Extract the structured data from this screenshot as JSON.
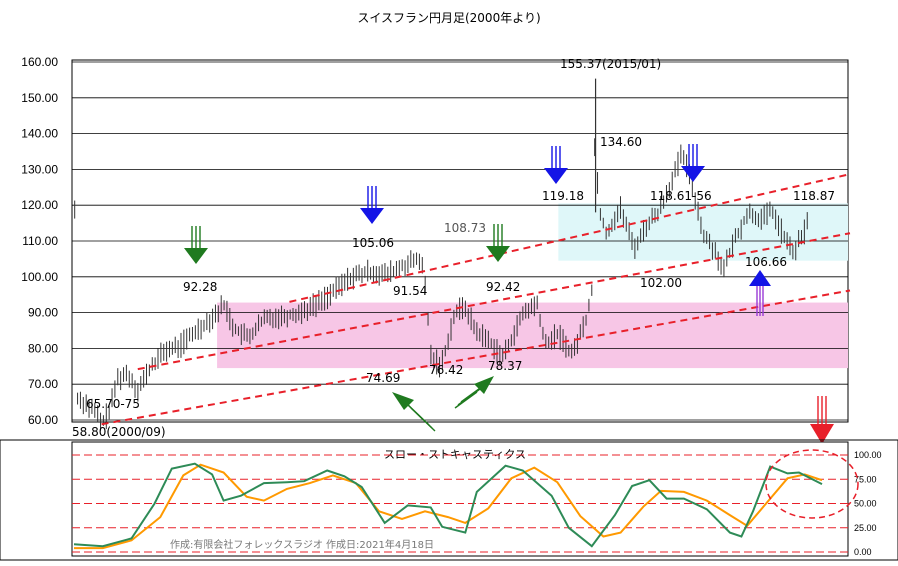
{
  "title": "スイスフラン円月足(2000年より)",
  "credit": "作成:有限会社フォレックスラジオ  作成日:2021年4月18日",
  "colors": {
    "cyan_zone": "#dff7f9",
    "pink_zone": "#f7c6e6",
    "trend_red": "#e8202a",
    "down_arrow_green": "#1f7a1f",
    "down_arrow_blue": "#1414e6",
    "up_arrow_blue": "#1414e6",
    "up_arrow_green": "#1f7a1f",
    "warning_red": "#e8202a",
    "stoch_k": "#2e8b57",
    "stoch_d": "#ff9900"
  },
  "chart_data": [
    {
      "type": "line",
      "name": "price",
      "ylim": [
        60,
        160
      ],
      "yticks": [
        "160.00",
        "150.00",
        "140.00",
        "130.00",
        "120.00",
        "110.00",
        "100.00",
        "90.00",
        "80.00",
        "70.00",
        "60.00"
      ],
      "zones": [
        {
          "name": "cyan",
          "from": 104.5,
          "to": 120.5
        },
        {
          "name": "pink",
          "from": 74.5,
          "to": 92.8
        }
      ],
      "trendlines": [
        {
          "x": [
            2000.75,
            2021.3
          ],
          "y": [
            58.8,
            94.5
          ]
        },
        {
          "x": [
            2001.8,
            2021.3
          ],
          "y": [
            74.2,
            110.5
          ]
        },
        {
          "x": [
            2006.2,
            2021.3
          ],
          "y": [
            93.0,
            127.0
          ]
        }
      ],
      "x_range": [
        1999.95,
        2021.3
      ],
      "price_anchors": [
        [
          2000.0,
          66.5
        ],
        [
          2000.3,
          64.5
        ],
        [
          2000.6,
          62.0
        ],
        [
          2000.75,
          58.8
        ],
        [
          2001.0,
          63.0
        ],
        [
          2001.2,
          71.5
        ],
        [
          2001.5,
          73.0
        ],
        [
          2001.8,
          68.5
        ],
        [
          2002.2,
          75.0
        ],
        [
          2002.6,
          79.5
        ],
        [
          2003.0,
          80.5
        ],
        [
          2003.5,
          85.0
        ],
        [
          2004.0,
          89.0
        ],
        [
          2004.3,
          92.28
        ],
        [
          2004.6,
          85.5
        ],
        [
          2005.0,
          83.0
        ],
        [
          2005.5,
          88.5
        ],
        [
          2006.0,
          89.0
        ],
        [
          2006.5,
          90.0
        ],
        [
          2007.0,
          92.5
        ],
        [
          2007.5,
          96.0
        ],
        [
          2008.0,
          100.0
        ],
        [
          2008.6,
          101.5
        ],
        [
          2009.0,
          100.5
        ],
        [
          2009.6,
          103.5
        ],
        [
          2010.0,
          105.06
        ],
        [
          2010.15,
          97.0
        ],
        [
          2010.3,
          78.0
        ],
        [
          2010.6,
          75.0
        ],
        [
          2011.0,
          90.0
        ],
        [
          2011.3,
          91.54
        ],
        [
          2011.6,
          85.0
        ],
        [
          2012.0,
          82.0
        ],
        [
          2012.4,
          77.5
        ],
        [
          2012.7,
          84.0
        ],
        [
          2013.0,
          90.0
        ],
        [
          2013.4,
          92.42
        ],
        [
          2013.6,
          81.0
        ],
        [
          2014.0,
          84.0
        ],
        [
          2014.4,
          78.37
        ],
        [
          2014.8,
          88.0
        ],
        [
          2015.0,
          98.0
        ],
        [
          2015.08,
          155.37
        ],
        [
          2015.15,
          120.0
        ],
        [
          2015.4,
          112.0
        ],
        [
          2015.8,
          119.18
        ],
        [
          2016.2,
          108.0
        ],
        [
          2016.6,
          115.0
        ],
        [
          2016.9,
          118.0
        ],
        [
          2017.3,
          127.0
        ],
        [
          2017.6,
          134.6
        ],
        [
          2017.9,
          125.0
        ],
        [
          2018.2,
          112.0
        ],
        [
          2018.5,
          108.0
        ],
        [
          2018.8,
          102.0
        ],
        [
          2019.1,
          110.0
        ],
        [
          2019.5,
          118.0
        ],
        [
          2019.9,
          116.0
        ],
        [
          2020.2,
          118.61
        ],
        [
          2020.5,
          112.0
        ],
        [
          2020.8,
          106.66
        ],
        [
          2021.0,
          110.0
        ],
        [
          2021.2,
          114.0
        ],
        [
          2021.3,
          118.87
        ]
      ],
      "annotations": [
        {
          "text": "155.37(2015/01)",
          "x": 2015.08,
          "y": 155.37
        },
        {
          "text": "134.60",
          "x": 2017.6,
          "y": 134.6
        },
        {
          "text": "119.18",
          "x": 2015.8,
          "y": 119.18
        },
        {
          "text": "118.61-56",
          "x": 2020.2,
          "y": 118.61
        },
        {
          "text": "118.87",
          "x": 2021.3,
          "y": 118.87
        },
        {
          "text": "108.73",
          "x": 2013.4,
          "y": 108.73
        },
        {
          "text": "105.06",
          "x": 2010.0,
          "y": 105.06
        },
        {
          "text": "106.66",
          "x": 2020.8,
          "y": 106.66
        },
        {
          "text": "102.00",
          "x": 2018.8,
          "y": 102.0
        },
        {
          "text": "92.28",
          "x": 2004.3,
          "y": 92.28
        },
        {
          "text": "91.54",
          "x": 2011.3,
          "y": 91.54
        },
        {
          "text": "92.42",
          "x": 2013.4,
          "y": 92.42
        },
        {
          "text": "74.69",
          "x": 2010.6,
          "y": 74.69
        },
        {
          "text": "76.42",
          "x": 2012.4,
          "y": 76.42
        },
        {
          "text": "78.37",
          "x": 2014.4,
          "y": 78.37
        },
        {
          "text": "65.70-75",
          "x": 2001.2,
          "y": 65.7
        },
        {
          "text": "58.80(2000/09)",
          "x": 2000.75,
          "y": 58.8
        }
      ]
    },
    {
      "type": "line",
      "name": "スロー・ストキャスティクス",
      "ylim": [
        0,
        100
      ],
      "yticks": [
        "100.00",
        "75.00",
        "50.00",
        "25.00",
        "0.00"
      ],
      "k_anchors": [
        [
          0.0,
          8
        ],
        [
          0.05,
          6
        ],
        [
          0.1,
          14
        ],
        [
          0.14,
          50
        ],
        [
          0.17,
          86
        ],
        [
          0.21,
          91
        ],
        [
          0.24,
          80
        ],
        [
          0.26,
          53
        ],
        [
          0.29,
          58
        ],
        [
          0.33,
          71
        ],
        [
          0.37,
          72
        ],
        [
          0.4,
          73
        ],
        [
          0.44,
          84
        ],
        [
          0.47,
          78
        ],
        [
          0.5,
          67
        ],
        [
          0.54,
          30
        ],
        [
          0.58,
          48
        ],
        [
          0.62,
          46
        ],
        [
          0.64,
          26
        ],
        [
          0.68,
          20
        ],
        [
          0.7,
          62
        ],
        [
          0.75,
          89
        ],
        [
          0.78,
          84
        ],
        [
          0.83,
          58
        ],
        [
          0.86,
          25
        ],
        [
          0.9,
          6
        ],
        [
          0.94,
          38
        ],
        [
          0.97,
          68
        ],
        [
          1.0,
          74
        ],
        [
          1.03,
          55
        ],
        [
          1.06,
          55
        ],
        [
          1.1,
          44
        ],
        [
          1.14,
          20
        ],
        [
          1.16,
          16
        ],
        [
          1.18,
          42
        ],
        [
          1.21,
          88
        ],
        [
          1.24,
          81
        ],
        [
          1.26,
          82
        ],
        [
          1.3,
          70
        ]
      ],
      "d_anchors": [
        [
          0.0,
          4
        ],
        [
          0.05,
          4
        ],
        [
          0.1,
          12
        ],
        [
          0.15,
          36
        ],
        [
          0.19,
          79
        ],
        [
          0.22,
          90
        ],
        [
          0.26,
          82
        ],
        [
          0.3,
          57
        ],
        [
          0.33,
          53
        ],
        [
          0.37,
          65
        ],
        [
          0.41,
          71
        ],
        [
          0.45,
          79
        ],
        [
          0.49,
          71
        ],
        [
          0.53,
          42
        ],
        [
          0.57,
          34
        ],
        [
          0.61,
          42
        ],
        [
          0.65,
          36
        ],
        [
          0.68,
          30
        ],
        [
          0.72,
          45
        ],
        [
          0.76,
          76
        ],
        [
          0.8,
          87
        ],
        [
          0.84,
          72
        ],
        [
          0.88,
          37
        ],
        [
          0.92,
          16
        ],
        [
          0.95,
          20
        ],
        [
          0.99,
          47
        ],
        [
          1.02,
          63
        ],
        [
          1.06,
          62
        ],
        [
          1.1,
          53
        ],
        [
          1.14,
          38
        ],
        [
          1.17,
          27
        ],
        [
          1.2,
          48
        ],
        [
          1.24,
          76
        ],
        [
          1.27,
          80
        ],
        [
          1.3,
          74
        ]
      ]
    }
  ]
}
